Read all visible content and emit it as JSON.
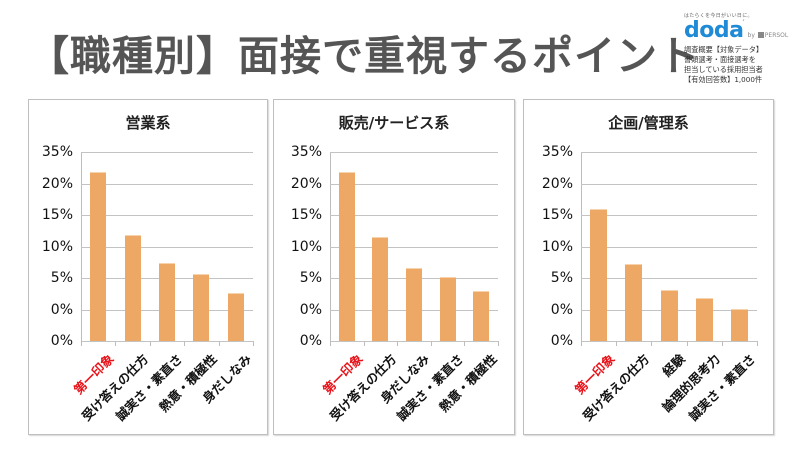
{
  "header": {
    "title": "【職種別】面接で重視するポイント"
  },
  "brand": {
    "tagline": "はたらくを今日がいい日に。",
    "logo": "doda",
    "by_label": "by",
    "partner": "PERSOL",
    "survey_lines": [
      "調査概要【対象データ】",
      "書類選考・面接選考を",
      "担当している採用担当者",
      "【有効回答数】1,000件"
    ]
  },
  "colors": {
    "bar": "#eda865",
    "highlight_label": "#e8141b",
    "title": "#555555",
    "brand": "#1f8ad6"
  },
  "y_tick_labels": [
    "35%",
    "20%",
    "15%",
    "10%",
    "5%",
    "0%",
    "0%"
  ],
  "chart_data": [
    {
      "type": "bar",
      "title": "営業系",
      "categories": [
        "第一印象",
        "受け答えの仕方",
        "誠実さ・素直さ",
        "熱意・積極性",
        "身だしなみ"
      ],
      "values": [
        26.7,
        16.7,
        12.3,
        10.5,
        7.5
      ],
      "highlight_category": "第一印象",
      "y_tick_labels": [
        "35%",
        "20%",
        "15%",
        "10%",
        "5%",
        "0%",
        "0%"
      ],
      "ylim": [
        0,
        30
      ],
      "grid": true,
      "xlabel": "",
      "ylabel": ""
    },
    {
      "type": "bar",
      "title": "販売/サービス系",
      "categories": [
        "第一印象",
        "受け答えの仕方",
        "身だしなみ",
        "誠実さ・素直さ",
        "熱意・積極性"
      ],
      "values": [
        26.6,
        16.4,
        11.4,
        10.0,
        7.8
      ],
      "highlight_category": "第一印象",
      "y_tick_labels": [
        "35%",
        "20%",
        "15%",
        "10%",
        "5%",
        "0%",
        "0%"
      ],
      "ylim": [
        0,
        30
      ],
      "grid": true,
      "xlabel": "",
      "ylabel": ""
    },
    {
      "type": "bar",
      "title": "企画/管理系",
      "categories": [
        "第一印象",
        "受け答えの仕方",
        "経験",
        "論理的思考力",
        "誠実さ・素直さ"
      ],
      "values": [
        20.8,
        12.1,
        7.9,
        6.6,
        5.0
      ],
      "highlight_category": "第一印象",
      "y_tick_labels": [
        "35%",
        "20%",
        "15%",
        "10%",
        "5%",
        "0%",
        "0%"
      ],
      "ylim": [
        0,
        30
      ],
      "grid": true,
      "xlabel": "",
      "ylabel": ""
    }
  ]
}
